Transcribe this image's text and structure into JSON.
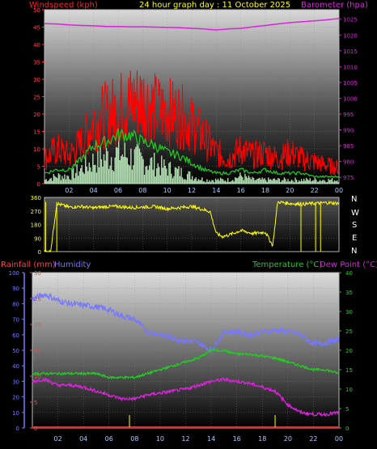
{
  "header": {
    "left": "Windspeed (kph)",
    "center": "24 hour graph day : 11 October 2025",
    "right": "Barometer (hpa)"
  },
  "panel3_labels": {
    "rain": "Rainfall (mm)",
    "humidity": "Humidity",
    "temperature": "Temperature (°C)",
    "dewpoint": "Dew Point (°C)"
  },
  "colors": {
    "wind": "#ff0000",
    "gust_avg": "#22cc22",
    "wind_fill": "#ccffcc",
    "barometer": "#dd22dd",
    "direction": "#ffff00",
    "humidity": "#7777ff",
    "temperature": "#22cc22",
    "dewpoint": "#dd22dd",
    "rain": "#ff2222",
    "rain_ticks": "#ffff00"
  },
  "chart_data": [
    {
      "type": "line",
      "name": "wind-barometer",
      "xlabel": "",
      "x_ticks": [
        "02",
        "04",
        "06",
        "08",
        "10",
        "12",
        "14",
        "16",
        "18",
        "20",
        "22",
        "00"
      ],
      "y_left_label": "Windspeed (kph)",
      "y_left_ticks": [
        0,
        5,
        10,
        15,
        20,
        25,
        30,
        35,
        40,
        45,
        50
      ],
      "ylim_left": [
        0,
        50
      ],
      "y_right_label": "Barometer (hpa)",
      "y_right_ticks": [
        975,
        980,
        985,
        990,
        995,
        1000,
        1005,
        1010,
        1015,
        1020,
        1025
      ],
      "ylim_right": [
        973,
        1028
      ],
      "hours": [
        0,
        1,
        2,
        3,
        4,
        5,
        6,
        7,
        8,
        9,
        10,
        11,
        12,
        13,
        14,
        15,
        16,
        17,
        18,
        19,
        20,
        21,
        22,
        23,
        24
      ],
      "wind_gust": [
        8,
        11,
        9,
        13,
        20,
        22,
        24,
        26,
        27,
        24,
        23,
        22,
        19,
        15,
        10,
        8,
        11,
        9,
        10,
        8,
        10,
        8,
        7,
        6,
        5
      ],
      "wind_avg": [
        3,
        4,
        4,
        7,
        11,
        12,
        14,
        14,
        12,
        11,
        9,
        8,
        6,
        4,
        3,
        3,
        4,
        3,
        4,
        3,
        3,
        3,
        2,
        2,
        2
      ],
      "wind_min": [
        1,
        2,
        2,
        4,
        6,
        7,
        8,
        7,
        6,
        5,
        4,
        3,
        2,
        1,
        1,
        1,
        2,
        1,
        1,
        1,
        1,
        1,
        1,
        1,
        1
      ],
      "barometer": [
        1023.6,
        1023.5,
        1023.2,
        1023.0,
        1022.9,
        1022.7,
        1022.7,
        1022.6,
        1022.6,
        1022.5,
        1022.4,
        1022.3,
        1022.1,
        1021.9,
        1021.6,
        1021.9,
        1022.1,
        1022.6,
        1023.0,
        1023.5,
        1023.9,
        1024.2,
        1024.5,
        1024.8,
        1025.2
      ]
    },
    {
      "type": "scatter",
      "name": "wind-direction",
      "x_ticks": [],
      "y_ticks": [
        0,
        90,
        180,
        270,
        360
      ],
      "ylim": [
        0,
        360
      ],
      "compass": [
        "N",
        "W",
        "S",
        "E",
        "N"
      ],
      "hours": [
        0,
        0.5,
        1,
        2,
        3,
        4,
        5,
        6,
        7,
        8,
        9,
        10,
        11,
        12,
        13,
        13.5,
        14,
        14.5,
        15,
        16,
        17,
        18,
        18.6,
        19,
        20,
        21,
        22,
        23,
        24
      ],
      "direction": [
        0,
        0,
        320,
        295,
        300,
        290,
        298,
        300,
        292,
        296,
        298,
        285,
        292,
        300,
        278,
        265,
        120,
        100,
        110,
        140,
        120,
        130,
        40,
        330,
        320,
        315,
        320,
        325,
        320
      ]
    },
    {
      "type": "line",
      "name": "rain-humidity-temperature",
      "x_ticks": [
        "02",
        "04",
        "06",
        "08",
        "10",
        "12",
        "14",
        "16",
        "18",
        "20",
        "22",
        "00"
      ],
      "humidity_ticks": [
        0,
        10,
        20,
        30,
        40,
        50,
        60,
        70,
        80,
        90,
        100
      ],
      "ylim_humidity": [
        0,
        100
      ],
      "rain_ticks": [
        0,
        5,
        10,
        15,
        20,
        25,
        30
      ],
      "ylim_rain": [
        0,
        30
      ],
      "temp_ticks": [
        0,
        5,
        10,
        15,
        20,
        25,
        30,
        35,
        40
      ],
      "ylim_temp": [
        0,
        40
      ],
      "hours": [
        0,
        1,
        2,
        3,
        4,
        5,
        6,
        7,
        8,
        9,
        10,
        11,
        12,
        13,
        14,
        15,
        16,
        17,
        18,
        19,
        20,
        21,
        22,
        23,
        24
      ],
      "humidity": [
        83,
        86,
        82,
        80,
        79,
        78,
        76,
        72,
        70,
        62,
        60,
        58,
        56,
        55,
        50,
        62,
        62,
        60,
        62,
        63,
        62,
        60,
        54,
        55,
        57
      ],
      "temperature": [
        14,
        14,
        14,
        14,
        14,
        14,
        13,
        13,
        13,
        14,
        15,
        16,
        17,
        18,
        20,
        20,
        19,
        19,
        18.5,
        18,
        17,
        16,
        15,
        15,
        14
      ],
      "dewpoint": [
        12,
        12.5,
        11,
        11,
        10.5,
        9.5,
        8.5,
        7.5,
        7.5,
        8.5,
        9,
        9.5,
        10,
        11,
        12,
        12.5,
        12,
        11.5,
        10.5,
        9.5,
        6,
        4,
        3.5,
        3.5,
        4
      ],
      "rain": [
        0,
        0,
        0,
        0,
        0,
        0,
        0,
        0,
        0,
        0,
        0,
        0,
        0,
        0,
        0,
        0,
        0,
        0,
        0,
        0,
        0,
        0,
        0,
        0,
        0
      ]
    }
  ]
}
